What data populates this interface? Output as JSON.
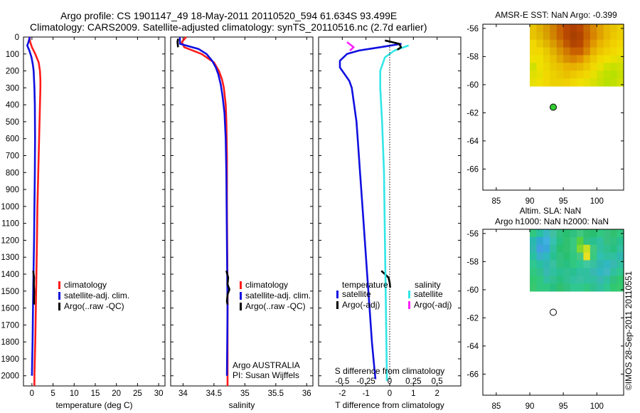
{
  "header": {
    "title_line1": "Argo profile: CS 1901147_49 18-May-2011 20110520_594 61.634S 93.499E",
    "title_line2": "Climatology: CARS2009. Satellite-adjusted climatology: synTS_20110516.nc (2.7d earlier)"
  },
  "colors": {
    "climatology": "#ff1a1a",
    "satellite": "#1010e0",
    "argo": "#000000",
    "sat_salinity": "#33e6e6",
    "argo_salinity": "#ff22ff"
  },
  "chart_data": [
    {
      "type": "line",
      "id": "temperature",
      "xlabel": "temperature (deg C)",
      "xlim": [
        -2,
        31.5
      ],
      "ylim": [
        2060,
        0
      ],
      "xticks": [
        0,
        5,
        10,
        15,
        20,
        25,
        30
      ],
      "yticks": [
        0,
        100,
        200,
        300,
        400,
        500,
        600,
        700,
        800,
        900,
        1000,
        1100,
        1200,
        1300,
        1400,
        1500,
        1600,
        1700,
        1800,
        1900,
        2000
      ],
      "legend": [
        "climatology",
        "satellite-adj. clim.",
        "Argo(..raw -QC)"
      ],
      "series": [
        {
          "name": "climatology",
          "color": "#ff1a1a",
          "depth": [
            0,
            30,
            60,
            100,
            150,
            200,
            250,
            300,
            400,
            500,
            600,
            800,
            1000,
            1200,
            1500,
            1800,
            2000,
            2060
          ],
          "values": [
            -0.6,
            -0.4,
            0.0,
            0.8,
            1.6,
            1.9,
            2.0,
            2.0,
            1.9,
            1.8,
            1.7,
            1.5,
            1.3,
            1.2,
            1.0,
            0.8,
            0.6,
            0.6
          ]
        },
        {
          "name": "satellite-adj. clim.",
          "color": "#1010e0",
          "depth": [
            0,
            30,
            50,
            80,
            120,
            160,
            200,
            300,
            400,
            600,
            800,
            1000,
            1200,
            1500,
            1800,
            2000
          ],
          "values": [
            -0.5,
            -0.8,
            -1.1,
            -0.6,
            -0.1,
            0.2,
            0.4,
            0.6,
            0.7,
            0.75,
            0.7,
            0.6,
            0.5,
            0.3,
            0.15,
            0.0
          ]
        },
        {
          "name": "Argo(..raw -QC)",
          "color": "#000000",
          "depth": [
            1380,
            1420,
            1460,
            1500,
            1540,
            1580
          ],
          "values": [
            0.3,
            0.5,
            0.45,
            0.55,
            0.5,
            0.5
          ]
        }
      ]
    },
    {
      "type": "line",
      "id": "salinity",
      "xlabel": "salinity",
      "xlim": [
        33.8,
        36.1
      ],
      "ylim": [
        2060,
        0
      ],
      "xticks": [
        34,
        34.5,
        35,
        35.5,
        36
      ],
      "legend": [
        "climatology",
        "satellite-adj. clim.",
        "Argo(..raw -QC)"
      ],
      "credit_line1": "Argo AUSTRALIA",
      "credit_line2": "PI: Susan Wijffels",
      "series": [
        {
          "name": "climatology",
          "color": "#ff1a1a",
          "depth": [
            0,
            30,
            60,
            100,
            150,
            200,
            250,
            300,
            400,
            500,
            700,
            1000,
            1500,
            2000,
            2060
          ],
          "values": [
            34.05,
            33.98,
            34.02,
            34.3,
            34.5,
            34.58,
            34.63,
            34.66,
            34.69,
            34.7,
            34.71,
            34.71,
            34.72,
            34.72,
            34.72
          ]
        },
        {
          "name": "satellite-adj. clim.",
          "color": "#1010e0",
          "depth": [
            0,
            40,
            70,
            100,
            140,
            180,
            220,
            280,
            350,
            450,
            600,
            800,
            1200,
            1600,
            2000
          ],
          "values": [
            33.95,
            33.95,
            34.25,
            34.38,
            34.47,
            34.53,
            34.57,
            34.61,
            34.64,
            34.67,
            34.69,
            34.7,
            34.71,
            34.72,
            34.71
          ]
        },
        {
          "name": "Argo(..raw -QC)",
          "color": "#000000",
          "depth": [
            1380,
            1420,
            1460,
            1490,
            1520,
            1560,
            1580
          ],
          "values": [
            34.7,
            34.73,
            34.72,
            34.75,
            34.72,
            34.71,
            34.72
          ]
        },
        {
          "name": "Argo surface",
          "color": "#000000",
          "depth": [
            10,
            30,
            60
          ],
          "values": [
            33.92,
            33.91,
            33.92
          ]
        }
      ]
    },
    {
      "type": "line",
      "id": "difference",
      "xlabel": "T difference from climatology",
      "x2label": "S difference from climatology",
      "xlim": [
        -3,
        3
      ],
      "ylim": [
        2060,
        0
      ],
      "xticks": [
        -2,
        -1,
        0,
        1,
        2
      ],
      "x2ticks": [
        -0.5,
        -0.25,
        0,
        0.25,
        0.5
      ],
      "legend_header_t": "temperature",
      "legend_header_s": "salinity",
      "legend": [
        "satellite",
        "Argo(-adj)",
        "satellite",
        "Argo(-adj)"
      ],
      "series": [
        {
          "name": "T satellite",
          "color": "#1010e0",
          "depth": [
            40,
            60,
            80,
            100,
            140,
            180,
            220,
            260,
            300,
            400,
            500,
            600,
            800,
            1000,
            1200,
            1400,
            1600,
            1800,
            1950,
            2020
          ],
          "values": [
            0.5,
            -0.4,
            -1.3,
            -1.8,
            -2.1,
            -2.1,
            -1.9,
            -1.7,
            -1.6,
            -1.5,
            -1.4,
            -1.35,
            -1.25,
            -1.15,
            -1.05,
            -0.95,
            -0.85,
            -0.75,
            -0.65,
            -0.6
          ]
        },
        {
          "name": "T Argo(-adj)",
          "color": "#000000",
          "depth": [
            1380,
            1400,
            1420,
            1450,
            1480
          ],
          "values": [
            -0.35,
            -0.2,
            -0.05,
            0.0,
            0.02
          ]
        },
        {
          "name": "S satellite",
          "color": "#33e6e6",
          "depth": [
            50,
            80,
            120,
            200,
            300,
            500,
            800,
            1200,
            1600,
            2000,
            2030
          ],
          "values": [
            0.2,
            0.05,
            -0.05,
            -0.1,
            -0.1,
            -0.08,
            -0.06,
            -0.05,
            -0.04,
            -0.03,
            -0.03
          ]
        },
        {
          "name": "S Argo(-adj)",
          "color": "#ff22ff",
          "depth": [
            30,
            60,
            80
          ],
          "values": [
            -0.45,
            -0.38,
            -0.42
          ]
        },
        {
          "name": "S Argo raw",
          "color": "#000000",
          "depth": [
            20,
            40,
            60,
            75
          ],
          "values": [
            -0.05,
            0.1,
            0.12,
            0.08
          ]
        }
      ]
    },
    {
      "type": "heatmap",
      "id": "sst_map",
      "title": "AMSR-E SST: NaN Argo: -0.399",
      "xlim": [
        83,
        104
      ],
      "ylim": [
        -67.5,
        -55.7
      ],
      "xticks": [
        85,
        90,
        95,
        100
      ],
      "yticks": [
        -56,
        -58,
        -60,
        -62,
        -64,
        -66
      ],
      "marker": {
        "lon": 93.5,
        "lat": -61.6,
        "fill": "#33cc33"
      },
      "data_extent": {
        "lon": [
          90,
          104
        ],
        "lat": [
          -60.1,
          -55.7
        ]
      },
      "cols": 14,
      "rows": 8,
      "grid": [
        [
          "#e8c400",
          "#e0b000",
          "#d89a00",
          "#d08000",
          "#c86000",
          "#b84800",
          "#b04000",
          "#b84800",
          "#c86800",
          "#d88800",
          "#e0a000",
          "#e8b800",
          "#e8c400",
          "#ecd000"
        ],
        [
          "#e8c400",
          "#e0b800",
          "#d8a000",
          "#d08400",
          "#c86400",
          "#b84800",
          "#a84000",
          "#b04400",
          "#c86400",
          "#d88400",
          "#e0a000",
          "#e8b800",
          "#ecc800",
          "#ecd000"
        ],
        [
          "#f0d800",
          "#e8c800",
          "#e0b400",
          "#d89c00",
          "#d07c00",
          "#c05800",
          "#b04400",
          "#b84800",
          "#d07000",
          "#e09800",
          "#e8b400",
          "#ecc400",
          "#f0d000",
          "#f0d800"
        ],
        [
          "#f0d800",
          "#f0d800",
          "#e8c800",
          "#e0b000",
          "#d89400",
          "#d07800",
          "#c86000",
          "#c86000",
          "#d88400",
          "#e8b000",
          "#ecc400",
          "#f0d000",
          "#f0d800",
          "#f0e000"
        ],
        [
          "#f0e000",
          "#f0e000",
          "#ecd000",
          "#e8c000",
          "#e0a800",
          "#d89000",
          "#d88400",
          "#e09000",
          "#e8b000",
          "#ecc800",
          "#f0d800",
          "#f0e000",
          "#e8e000",
          "#e0e000"
        ],
        [
          "#d0e000",
          "#f0e000",
          "#ecd800",
          "#e8c800",
          "#e8c000",
          "#e8b400",
          "#e8b000",
          "#e8b800",
          "#ecc800",
          "#f0d800",
          "#e8e000",
          "#d0e000",
          "#c8e000",
          "#d0e000"
        ],
        [
          "#e0e000",
          "#e8e000",
          "#f0d800",
          "#ecd000",
          "#e8c800",
          "#e8c000",
          "#ecc800",
          "#f0d000",
          "#f0d800",
          "#e8e000",
          "#d0e000",
          "#c0e000",
          "#b8e000",
          "#c8e000"
        ],
        [
          "#e8e000",
          "#f0e000",
          "#f0d800",
          "#ecd000",
          "#ecd000",
          "#f0d000",
          "#f0d800",
          "#f0e000",
          "#e8e000",
          "#d8e000",
          "#c8e000",
          "#b8e000",
          "#c0e000",
          "#d0e000"
        ]
      ]
    },
    {
      "type": "heatmap",
      "id": "sla_map",
      "title_line1": "Altim. SLA: NaN",
      "title_line2": "Argo h1000: NaN h2000: NaN",
      "xlim": [
        83,
        104
      ],
      "ylim": [
        -67.5,
        -55.7
      ],
      "xticks": [
        85,
        90,
        95,
        100
      ],
      "yticks": [
        -56,
        -58,
        -60,
        -62,
        -64,
        -66
      ],
      "marker": {
        "lon": 93.5,
        "lat": -61.6,
        "fill": "#ffffff"
      },
      "data_extent": {
        "lon": [
          90,
          104
        ],
        "lat": [
          -60.1,
          -55.7
        ]
      },
      "cols": 14,
      "rows": 8,
      "grid": [
        [
          "#30c880",
          "#28c0a0",
          "#38b8c0",
          "#40c0a0",
          "#30c080",
          "#28c070",
          "#30c080",
          "#40c880",
          "#30c070",
          "#28c070",
          "#30c880",
          "#38c080",
          "#30c070",
          "#30c880"
        ],
        [
          "#28b8b0",
          "#30a8d0",
          "#40b0e0",
          "#38c0b0",
          "#28c080",
          "#30c070",
          "#38c880",
          "#58d040",
          "#30c080",
          "#28c090",
          "#30c0a0",
          "#38c080",
          "#30c080",
          "#28c090"
        ],
        [
          "#30b8b0",
          "#40a0e0",
          "#38a8d8",
          "#30c0a0",
          "#28c070",
          "#30c070",
          "#38c880",
          "#80d830",
          "#c8e020",
          "#40c880",
          "#30c0a0",
          "#30c090",
          "#28c080",
          "#30c0a0"
        ],
        [
          "#28c0a0",
          "#38b0c8",
          "#30b8c0",
          "#28c090",
          "#30c080",
          "#28c070",
          "#30c880",
          "#48c880",
          "#e8e020",
          "#38c880",
          "#30c0b0",
          "#30c0a0",
          "#30c0a0",
          "#30b8b0"
        ],
        [
          "#30c890",
          "#28c0a0",
          "#30b8b0",
          "#38c0a0",
          "#30c080",
          "#28c080",
          "#30c880",
          "#30c890",
          "#40c8a0",
          "#38c0a0",
          "#30b8b0",
          "#30b8c0",
          "#38b8b0",
          "#30c0a0"
        ],
        [
          "#30c880",
          "#30c090",
          "#38b8b0",
          "#30c0a0",
          "#28c090",
          "#30c090",
          "#28c090",
          "#30c0a0",
          "#30c0a0",
          "#38b8b0",
          "#30b8c0",
          "#40b8c0",
          "#30c0a0",
          "#30c890"
        ],
        [
          "#30c870",
          "#30c880",
          "#30c0a0",
          "#30c090",
          "#28c080",
          "#30c090",
          "#30c0a0",
          "#38c0a0",
          "#30c0a0",
          "#30c0a0",
          "#38b8b0",
          "#30c0a0",
          "#30c080",
          "#30c870"
        ],
        [
          "#38c870",
          "#30c880",
          "#30c880",
          "#28c080",
          "#30c070",
          "#30c080",
          "#30c890",
          "#30c890",
          "#30c880",
          "#30c090",
          "#30c0a0",
          "#30c890",
          "#30c870",
          "#38c870"
        ]
      ]
    }
  ],
  "footer": {
    "stamp": "©IMOS 28-Sep-2011 20110551"
  }
}
